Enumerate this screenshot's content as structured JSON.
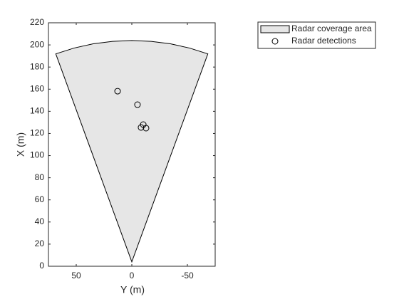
{
  "chart_data": {
    "type": "scatter",
    "x_label": "Y (m)",
    "y_label": "X (m)",
    "xlim": [
      75,
      -75
    ],
    "xticks": [
      50,
      0,
      -50
    ],
    "ylim": [
      0,
      220
    ],
    "yticks": [
      0,
      20,
      40,
      60,
      80,
      100,
      120,
      140,
      160,
      180,
      200,
      220
    ],
    "legend": "outside-top-right",
    "series": [
      {
        "name": "Radar coverage area",
        "type": "polygon",
        "color": "#e6e6e6",
        "x": [
          0,
          68.4,
          51.8,
          34.7,
          17.4,
          0,
          -17.4,
          -34.7,
          -51.8,
          -68.4
        ],
        "values": [
          4,
          191.9,
          197.2,
          201.0,
          203.2,
          204,
          203.2,
          201.0,
          197.2,
          191.9
        ]
      },
      {
        "name": "Radar detections",
        "type": "scatter",
        "color": "#000000",
        "x": [
          12.8,
          -5.1,
          -10.3,
          -8.3,
          -12.8
        ],
        "values": [
          158.2,
          146.0,
          128.0,
          125.4,
          124.8
        ]
      }
    ]
  }
}
